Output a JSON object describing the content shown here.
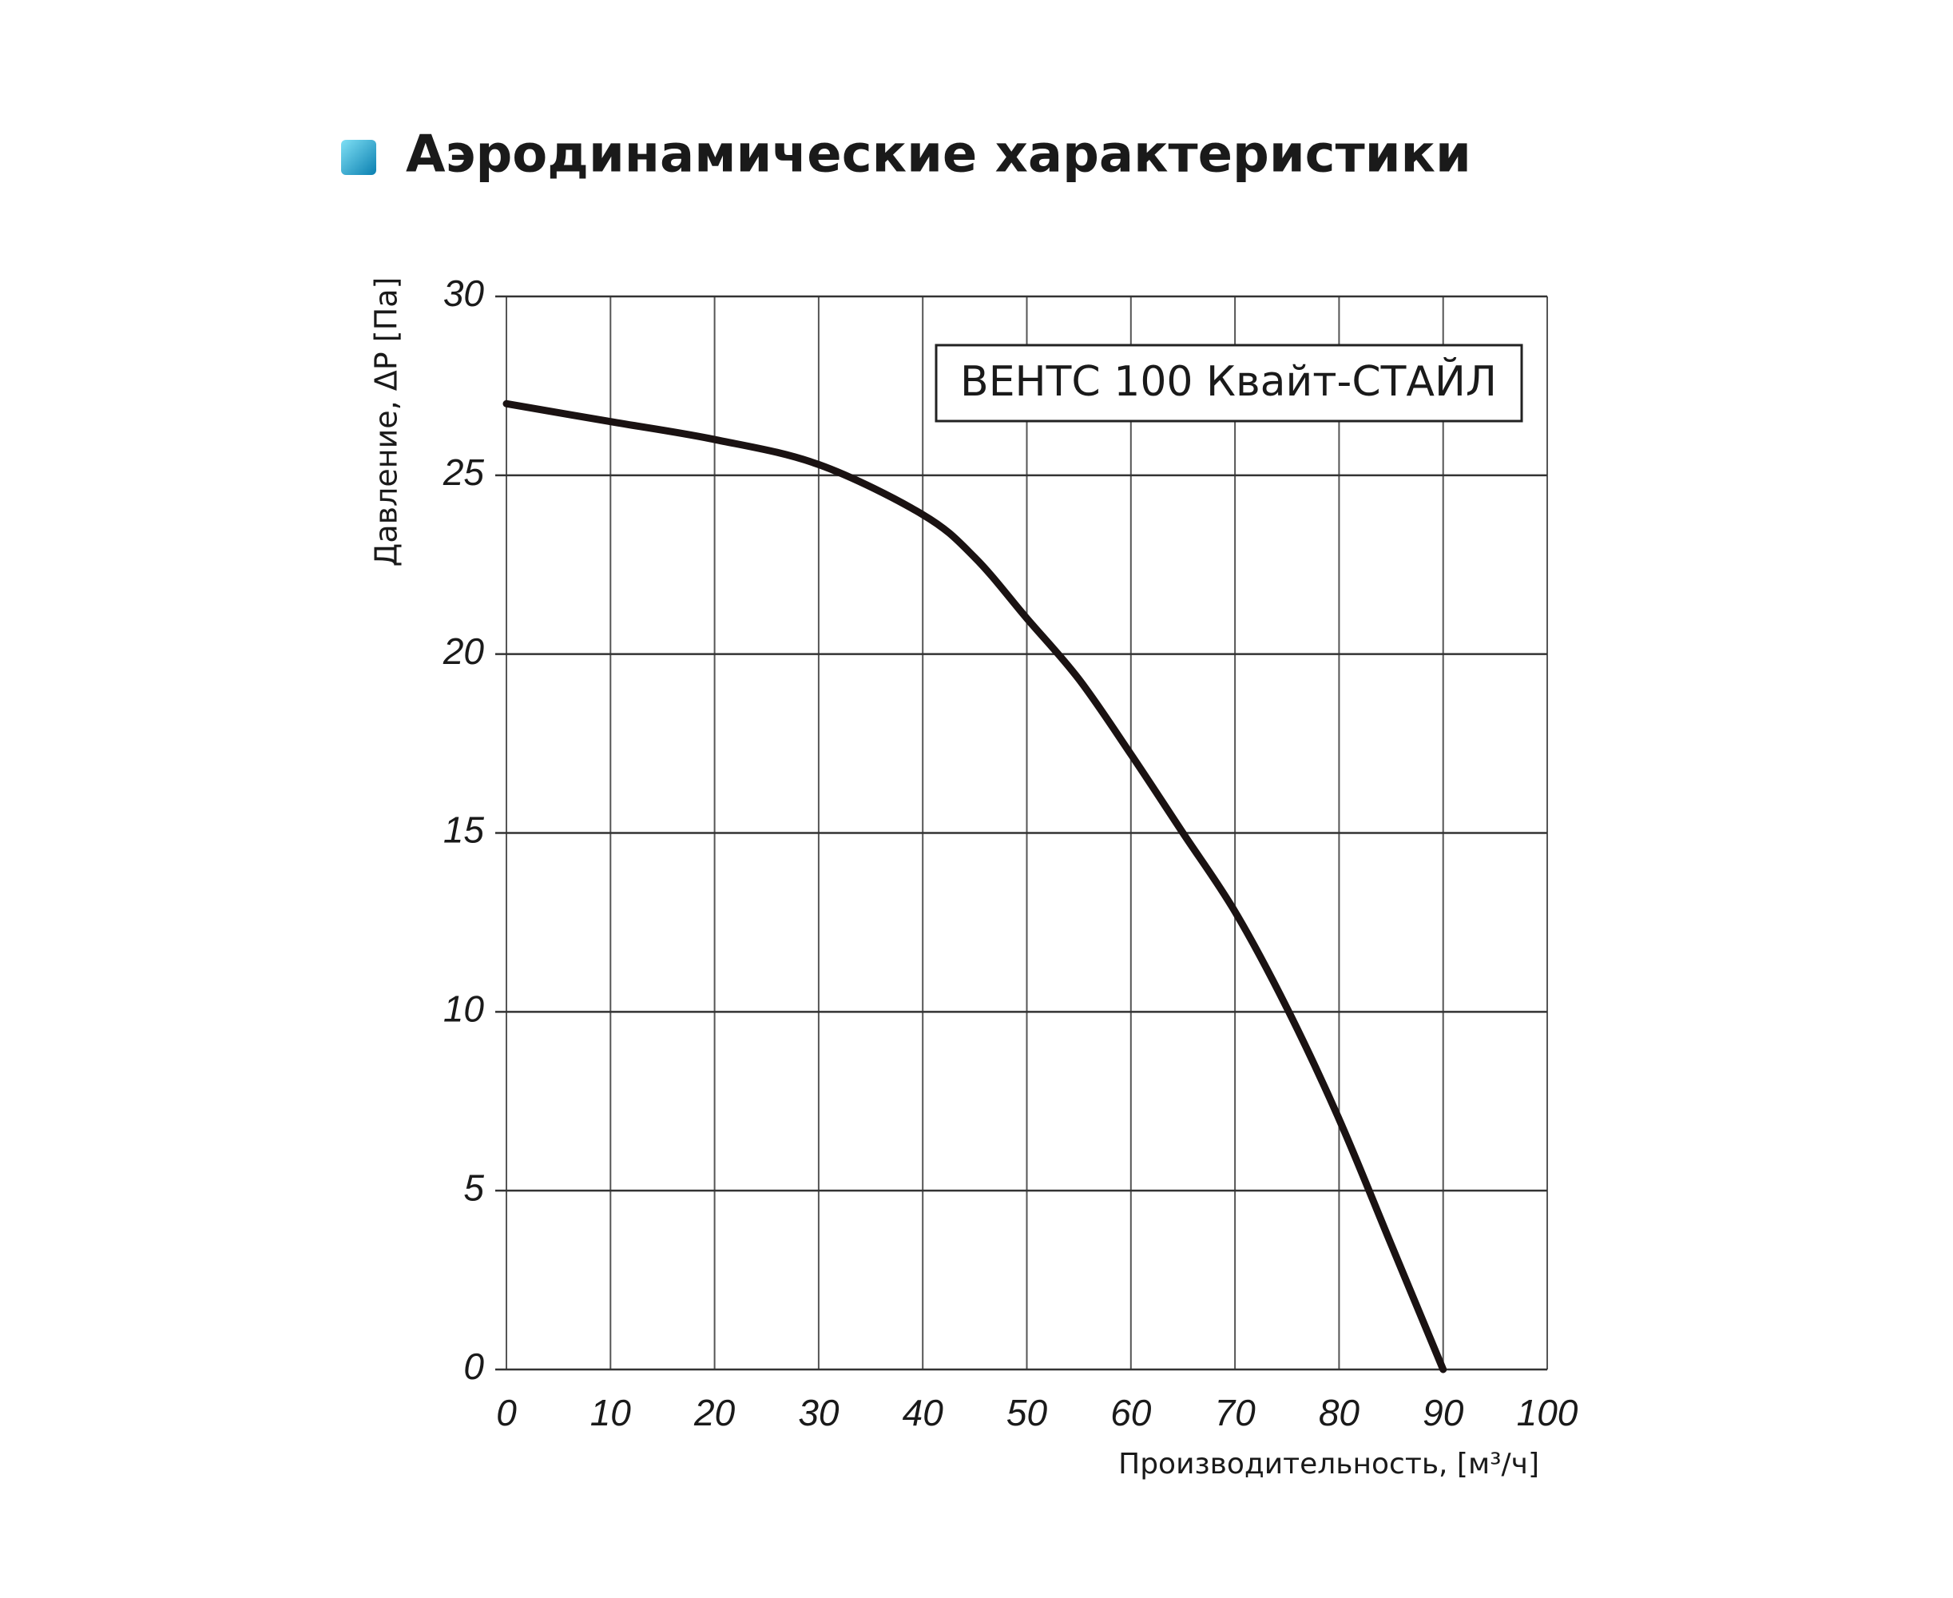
{
  "chart_data": {
    "type": "line",
    "title": "Аэродинамические характеристики",
    "x_label": "Производительность, [м³/ч]",
    "y_label": "Давление, ΔP [Па]",
    "x": [
      0,
      10,
      20,
      30,
      40,
      45,
      50,
      55,
      60,
      65,
      70,
      75,
      80,
      85,
      90
    ],
    "series": [
      {
        "name": "ВЕНТС 100 Квайт-СТАЙЛ",
        "color": "#1a1212",
        "values": [
          27,
          26.5,
          26,
          25.3,
          23.9,
          22.7,
          21,
          19.3,
          17.2,
          15,
          12.8,
          10.1,
          7,
          3.5,
          0
        ]
      }
    ],
    "xlim": [
      0,
      100
    ],
    "xticks": [
      0,
      10,
      20,
      30,
      40,
      50,
      60,
      70,
      80,
      90,
      100
    ],
    "ylim": [
      0,
      30
    ],
    "yticks": [
      0,
      5,
      10,
      15,
      20,
      25,
      30
    ],
    "grid": true
  }
}
